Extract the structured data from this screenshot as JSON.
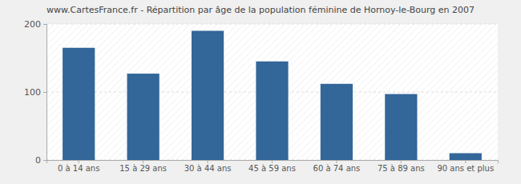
{
  "chart_data": {
    "type": "bar",
    "title": "www.CartesFrance.fr - Répartition par âge de la population féminine de Hornoy-le-Bourg en 2007",
    "categories": [
      "0 à 14 ans",
      "15 à 29 ans",
      "30 à 44 ans",
      "45 à 59 ans",
      "60 à 74 ans",
      "75 à 89 ans",
      "90 ans et plus"
    ],
    "values": [
      165,
      127,
      190,
      145,
      112,
      97,
      10
    ],
    "color": "#336699",
    "ylim": [
      0,
      200
    ],
    "yticks": [
      0,
      100,
      200
    ],
    "grid": true
  }
}
